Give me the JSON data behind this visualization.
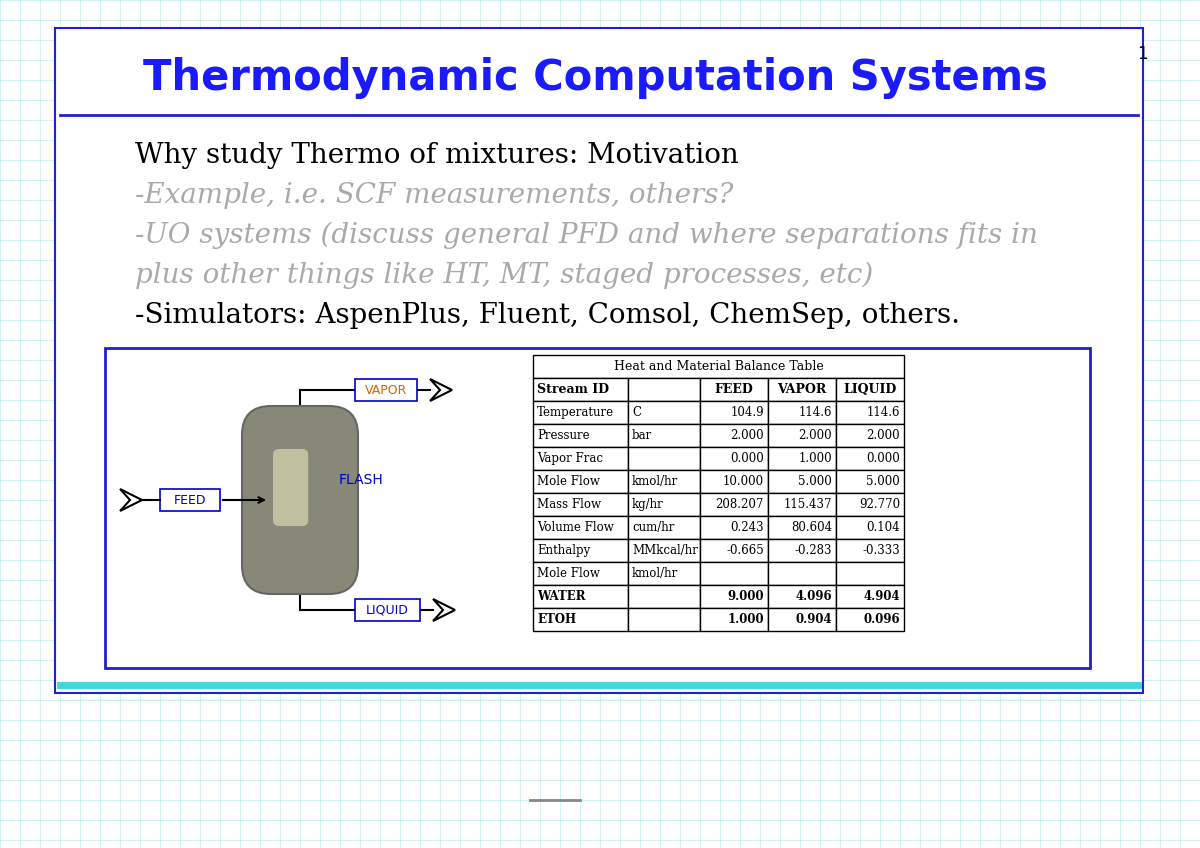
{
  "title": "Thermodynamic Computation Systems",
  "title_color": "#1a1aff",
  "slide_bg": "#ffffff",
  "grid_color": "#b0e8e8",
  "border_color": "#2020cc",
  "slide_number": "1",
  "bullet_lines": [
    {
      "text": "Why study Thermo of mixtures: Motivation",
      "color": "#000000",
      "italic": false,
      "size": 20
    },
    {
      "text": "-Example, i.e. SCF measurements, others?",
      "color": "#aaaaaa",
      "italic": true,
      "size": 20
    },
    {
      "text": "-UO systems (discuss general PFD and where separations fits in",
      "color": "#aaaaaa",
      "italic": true,
      "size": 20
    },
    {
      "text": "plus other things like HT, MT, staged processes, etc)",
      "color": "#aaaaaa",
      "italic": true,
      "size": 20
    },
    {
      "text": "-Simulators: AspenPlus, Fluent, Comsol, ChemSep, others.",
      "color": "#000000",
      "italic": false,
      "size": 20
    }
  ],
  "table_title": "Heat and Material Balance Table",
  "table_headers": [
    "Stream ID",
    "",
    "FEED",
    "VAPOR",
    "LIQUID"
  ],
  "table_rows": [
    [
      "Temperature",
      "C",
      "104.9",
      "114.6",
      "114.6"
    ],
    [
      "Pressure",
      "bar",
      "2.000",
      "2.000",
      "2.000"
    ],
    [
      "Vapor Frac",
      "",
      "0.000",
      "1.000",
      "0.000"
    ],
    [
      "Mole Flow",
      "kmol/hr",
      "10.000",
      "5.000",
      "5.000"
    ],
    [
      "Mass Flow",
      "kg/hr",
      "208.207",
      "115.437",
      "92.770"
    ],
    [
      "Volume Flow",
      "cum/hr",
      "0.243",
      "80.604",
      "0.104"
    ],
    [
      "Enthalpy",
      "MMkcal/hr",
      "-0.665",
      "-0.283",
      "-0.333"
    ],
    [
      "Mole Flow",
      "kmol/hr",
      "",
      "",
      ""
    ],
    [
      "WATER",
      "",
      "9.000",
      "4.096",
      "4.904"
    ],
    [
      "ETOH",
      "",
      "1.000",
      "0.904",
      "0.096"
    ]
  ],
  "vapor_label_color": "#cc6600",
  "liquid_label_color": "#0000cc",
  "flash_label_color": "#0000cc",
  "feed_label_color": "#0000cc"
}
